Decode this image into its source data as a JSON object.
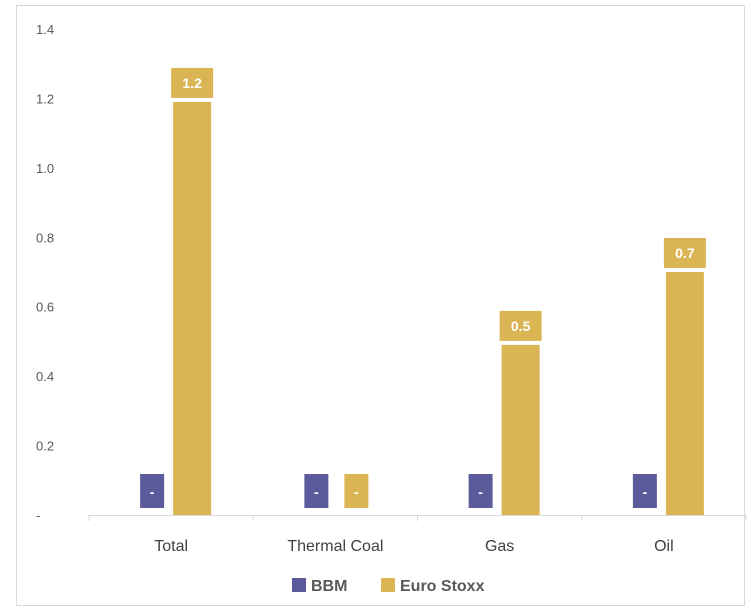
{
  "chart_data": {
    "type": "bar",
    "categories": [
      "Total",
      "Thermal Coal",
      "Gas",
      "Oil"
    ],
    "series": [
      {
        "name": "BBM",
        "color": "#5b5b9c",
        "values": [
          0,
          0,
          0,
          0
        ],
        "labels": [
          "-",
          "-",
          "-",
          "-"
        ]
      },
      {
        "name": "Euro Stoxx",
        "color": "#dbb453",
        "values": [
          1.19,
          0,
          0.49,
          0.7
        ],
        "labels": [
          "1.2",
          "-",
          "0.5",
          "0.7"
        ]
      }
    ],
    "y_ticks": [
      "-",
      "0.2",
      "0.4",
      "0.6",
      "0.8",
      "1.0",
      "1.2",
      "1.4"
    ],
    "ylim": [
      0,
      1.4
    ],
    "grid": false,
    "legend": "bottom"
  }
}
